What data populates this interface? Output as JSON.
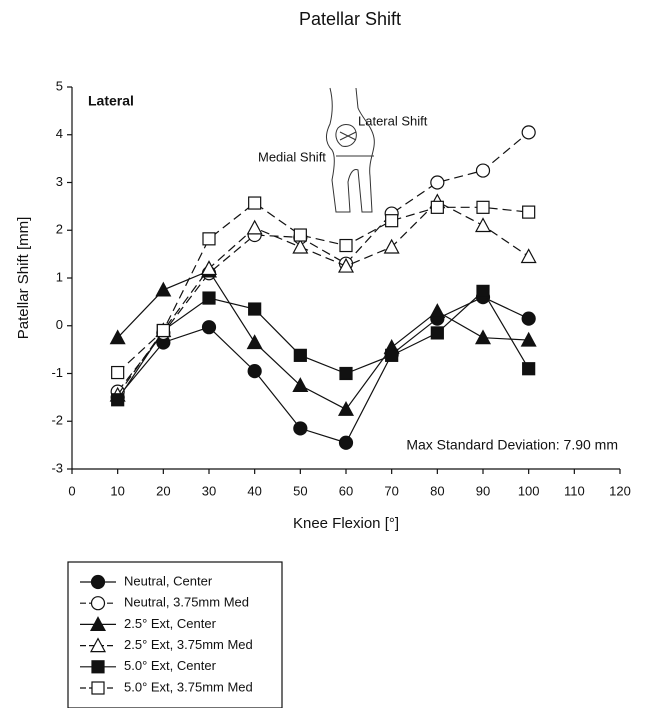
{
  "chart_data": {
    "type": "line",
    "title": "Patellar Shift",
    "x_label": "Knee Flexion [°]",
    "y_label": "Patellar Shift [mm]",
    "annotations": [
      "Lateral",
      "Max Standard Deviation: 7.90 mm",
      "Lateral Shift",
      "Medial Shift"
    ],
    "x": [
      10,
      20,
      30,
      40,
      50,
      60,
      70,
      80,
      90,
      100
    ],
    "xlim": [
      0,
      120
    ],
    "xticks": [
      0,
      10,
      20,
      30,
      40,
      50,
      60,
      70,
      80,
      90,
      100,
      110,
      120
    ],
    "ylim": [
      -3,
      5
    ],
    "yticks": [
      -3,
      -2,
      -1,
      0,
      1,
      2,
      3,
      4,
      5
    ],
    "grid": false,
    "legend": "bottom-left",
    "series": [
      {
        "name": "Neutral, Center",
        "color": "#111111",
        "marker": "circle",
        "filled": true,
        "dashed": false,
        "values": [
          -1.5,
          -0.35,
          -0.03,
          -0.95,
          -2.15,
          -2.45,
          -0.6,
          0.15,
          0.6,
          0.15
        ]
      },
      {
        "name": "Neutral, 3.75mm Med",
        "color": "#111111",
        "marker": "circle",
        "filled": false,
        "dashed": true,
        "values": [
          -1.38,
          -0.15,
          1.1,
          1.9,
          1.85,
          1.3,
          2.35,
          3.0,
          3.25,
          4.05
        ]
      },
      {
        "name": "2.5° Ext, Center",
        "color": "#111111",
        "marker": "triangle",
        "filled": true,
        "dashed": false,
        "values": [
          -0.25,
          0.75,
          1.15,
          -0.35,
          -1.25,
          -1.75,
          -0.45,
          0.3,
          -0.25,
          -0.3
        ]
      },
      {
        "name": "2.5° Ext, 3.75mm Med",
        "color": "#111111",
        "marker": "triangle",
        "filled": false,
        "dashed": true,
        "values": [
          -1.45,
          -0.1,
          1.2,
          2.05,
          1.65,
          1.25,
          1.65,
          2.6,
          2.1,
          1.45
        ]
      },
      {
        "name": "5.0° Ext, Center",
        "color": "#111111",
        "marker": "square",
        "filled": true,
        "dashed": false,
        "values": [
          -1.55,
          -0.1,
          0.58,
          0.35,
          -0.62,
          -1.0,
          -0.62,
          -0.15,
          0.72,
          -0.9
        ]
      },
      {
        "name": "5.0° Ext, 3.75mm Med",
        "color": "#111111",
        "marker": "square",
        "filled": false,
        "dashed": true,
        "values": [
          -0.98,
          -0.1,
          1.82,
          2.57,
          1.9,
          1.68,
          2.2,
          2.48,
          2.48,
          2.38
        ]
      }
    ]
  }
}
